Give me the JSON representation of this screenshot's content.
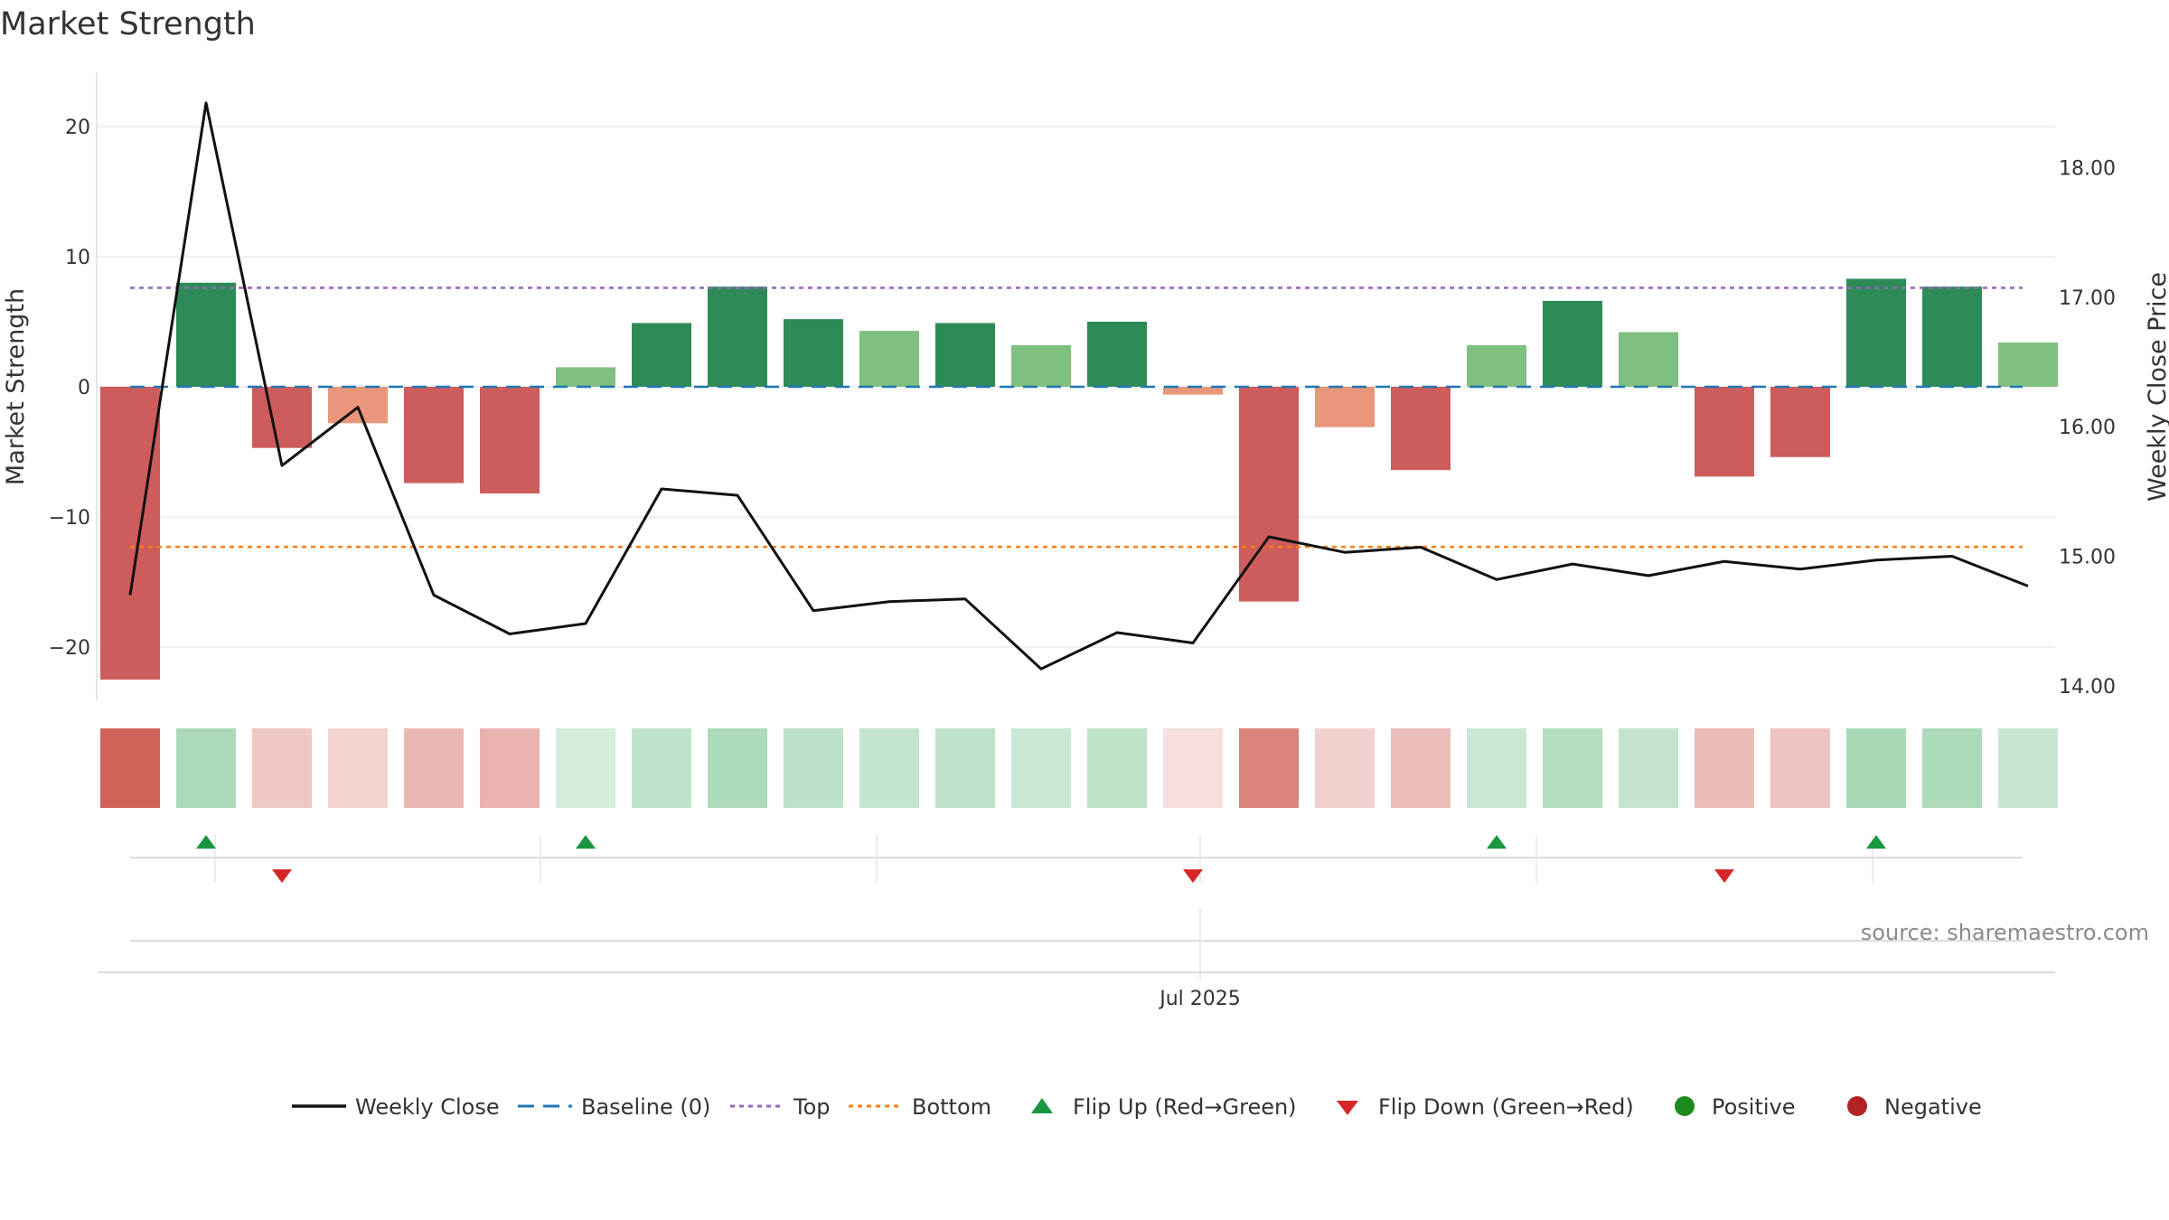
{
  "chart_data": {
    "type": "bar",
    "title": "Market Strength",
    "ylabel_left": "Market Strength",
    "ylabel_right": "Weekly Close Price",
    "xlabel": "",
    "x_tick_label": "Jul 2025",
    "source": "source: sharemaestro.com",
    "ylim_left": [
      -24,
      24
    ],
    "ylim_right": [
      13.7,
      18.5
    ],
    "left_ticks": [
      {
        "value": 20,
        "label": "20"
      },
      {
        "value": 10,
        "label": "10"
      },
      {
        "value": 0,
        "label": "0"
      },
      {
        "value": -10,
        "label": "−10"
      },
      {
        "value": -20,
        "label": "−20"
      }
    ],
    "right_ticks": [
      {
        "value": 18,
        "label": "18.00"
      },
      {
        "value": 17,
        "label": "17.00"
      },
      {
        "value": 16,
        "label": "16.00"
      },
      {
        "value": 15,
        "label": "15.00"
      },
      {
        "value": 14,
        "label": "14.00"
      }
    ],
    "top_line": 7.6,
    "bottom_line": -12.3,
    "baseline": 0,
    "strength": [
      -22.5,
      8.0,
      -4.7,
      -2.8,
      -7.4,
      -8.2,
      1.5,
      4.9,
      7.7,
      5.2,
      4.3,
      4.9,
      3.2,
      5.0,
      -0.6,
      -16.5,
      -3.1,
      -6.4,
      3.2,
      6.6,
      4.2,
      -6.9,
      -5.4,
      8.3,
      7.7,
      3.4
    ],
    "weekly_close": [
      14.7,
      18.5,
      15.7,
      16.15,
      14.7,
      14.4,
      14.48,
      15.52,
      15.47,
      14.58,
      14.65,
      14.67,
      14.13,
      14.41,
      14.33,
      15.15,
      15.03,
      15.07,
      14.82,
      14.94,
      14.85,
      14.96,
      14.9,
      14.97,
      15.0,
      14.77
    ],
    "flip_up_indices": [
      1,
      6,
      18,
      23
    ],
    "flip_down_indices": [
      2,
      14,
      21
    ],
    "legend": [
      {
        "key": "weekly_close",
        "label": "Weekly Close"
      },
      {
        "key": "baseline",
        "label": "Baseline (0)"
      },
      {
        "key": "top",
        "label": "Top"
      },
      {
        "key": "bottom",
        "label": "Bottom"
      },
      {
        "key": "flip_up",
        "label": "Flip Up (Red→Green)"
      },
      {
        "key": "flip_down",
        "label": "Flip Down (Green→Red)"
      },
      {
        "key": "positive",
        "label": "Positive"
      },
      {
        "key": "negative",
        "label": "Negative"
      }
    ]
  },
  "colors": {
    "strong_green": "#2e8b57",
    "light_green": "#7fbf7f",
    "strong_red": "#cd5c5c",
    "light_red": "#e9967a",
    "line": "#111111",
    "baseline": "#1f77b4",
    "top": "#9467bd",
    "bottom": "#ff7f0e",
    "flip_up": "#1a9641",
    "flip_down": "#d62728",
    "positive": "#1e8a1e",
    "negative": "#b22222"
  }
}
